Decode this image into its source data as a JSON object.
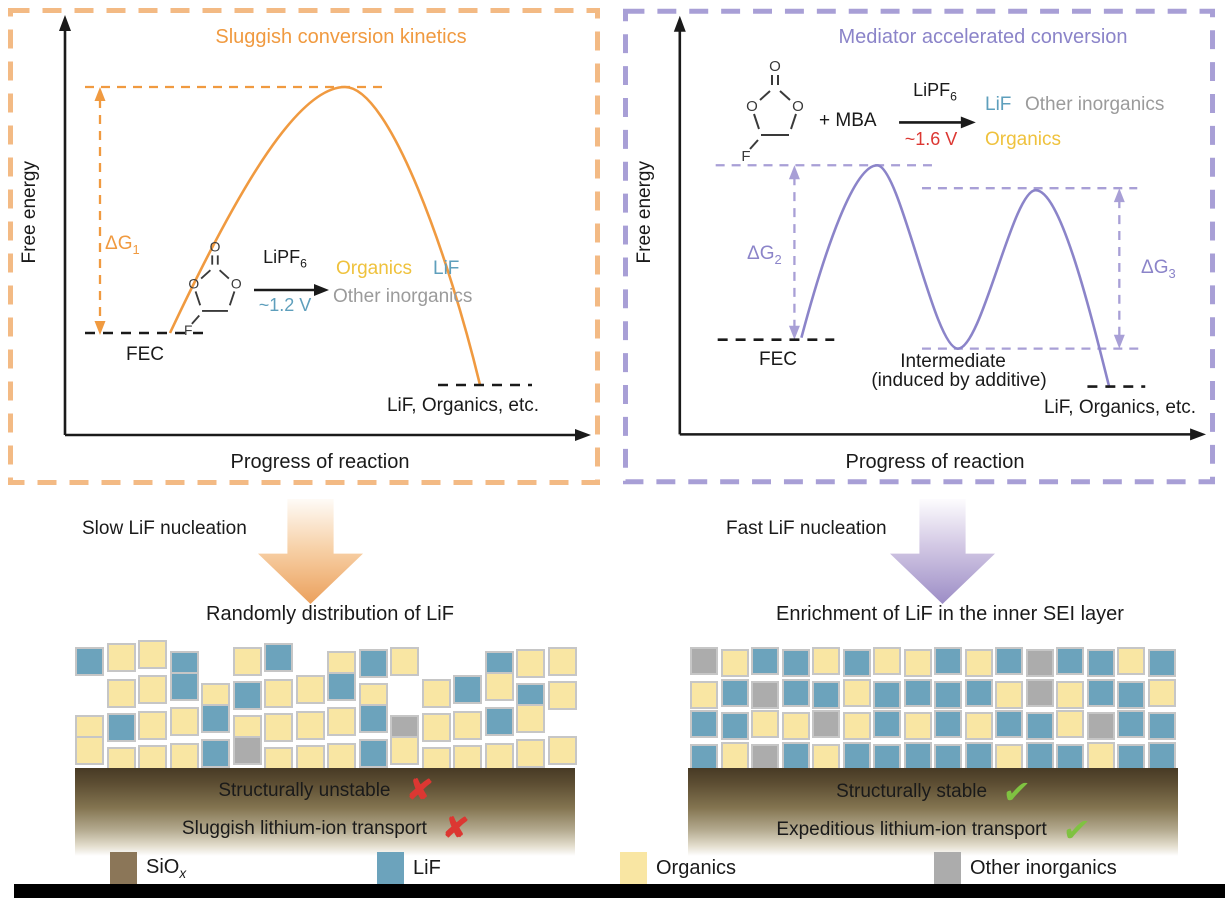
{
  "colors": {
    "orange": "#F09A40",
    "orange_light": "#F3BA84",
    "purple": "#8B84C9",
    "purple_light": "#A89FD6",
    "blue": "#5E9FBC",
    "yellow_text": "#EFC23D",
    "gray_text": "#9B9B9B",
    "red": "#DC3732",
    "green": "#7FC241",
    "cell_yellow": "#F9E6A3",
    "cell_blue": "#6CA3BC",
    "cell_gray": "#ACACAC",
    "cell_border": "#C6C6C6",
    "siox_brown": "#8B7658"
  },
  "left_panel": {
    "title": "Sluggish conversion kinetics",
    "y_axis": "Free energy",
    "x_axis": "Progress of reaction",
    "dg": {
      "base": "ΔG",
      "sub": "1"
    },
    "start": "FEC",
    "end": "LiF, Organics, etc.",
    "rxn": {
      "catalyst": "LiPF",
      "catalyst_sub": "6",
      "voltage": "~1.2 V",
      "p1": "Organics",
      "p2": "LiF",
      "p3": "Other inorganics"
    },
    "mol": {
      "o1": "O",
      "o2": "O",
      "o3": "O",
      "f": "F"
    }
  },
  "right_panel": {
    "title": "Mediator accelerated conversion",
    "y_axis": "Free energy",
    "x_axis": "Progress of reaction",
    "dg2": {
      "base": "ΔG",
      "sub": "2"
    },
    "dg3": {
      "base": "ΔG",
      "sub": "3"
    },
    "start": "FEC",
    "intermediate_line1": "Intermediate",
    "intermediate_line2": "(induced by additive)",
    "end": "LiF, Organics, etc.",
    "rxn": {
      "plus_mediator": "+  MBA",
      "catalyst": "LiPF",
      "catalyst_sub": "6",
      "voltage": "~1.6 V",
      "p1": "LiF",
      "p2": "Other inorganics",
      "p3": "Organics"
    },
    "mol": {
      "o1": "O",
      "o2": "O",
      "o3": "O",
      "f": "F"
    }
  },
  "middle": {
    "left_arrow_label": "Slow LiF nucleation",
    "right_arrow_label": "Fast LiF nucleation"
  },
  "bottom": {
    "left_title": "Randomly distribution of LiF",
    "right_title": "Enrichment of LiF in the inner SEI layer",
    "left_line1": "Structurally unstable",
    "left_line2": "Sluggish lithium-ion transport",
    "right_line1": "Structurally stable",
    "right_line2": "Expeditious lithium-ion transport",
    "cross": "✘",
    "check": "✔"
  },
  "legend": [
    {
      "label": "SiO",
      "label_sub": "x"
    },
    {
      "label": "LiF"
    },
    {
      "label": "Organics"
    },
    {
      "label": "Other inorganics"
    }
  ],
  "mosaics": {
    "left": {
      "rows": [
        "BYYB.YB.YBY..BYY",
        ".YYBYBYYBY.YBYBY",
        "YBYYBYYYYBGYYBY.",
        "YYYYBGYYYBYYYYYY"
      ]
    },
    "right": {
      "rows": [
        "GYBBYBYYBYBGBBYB",
        "YBGBBYBBBBYGYBBY",
        "BBYYGYBYBYBBYGBB",
        "BYGBYBBBBBYBBYBB"
      ]
    }
  }
}
